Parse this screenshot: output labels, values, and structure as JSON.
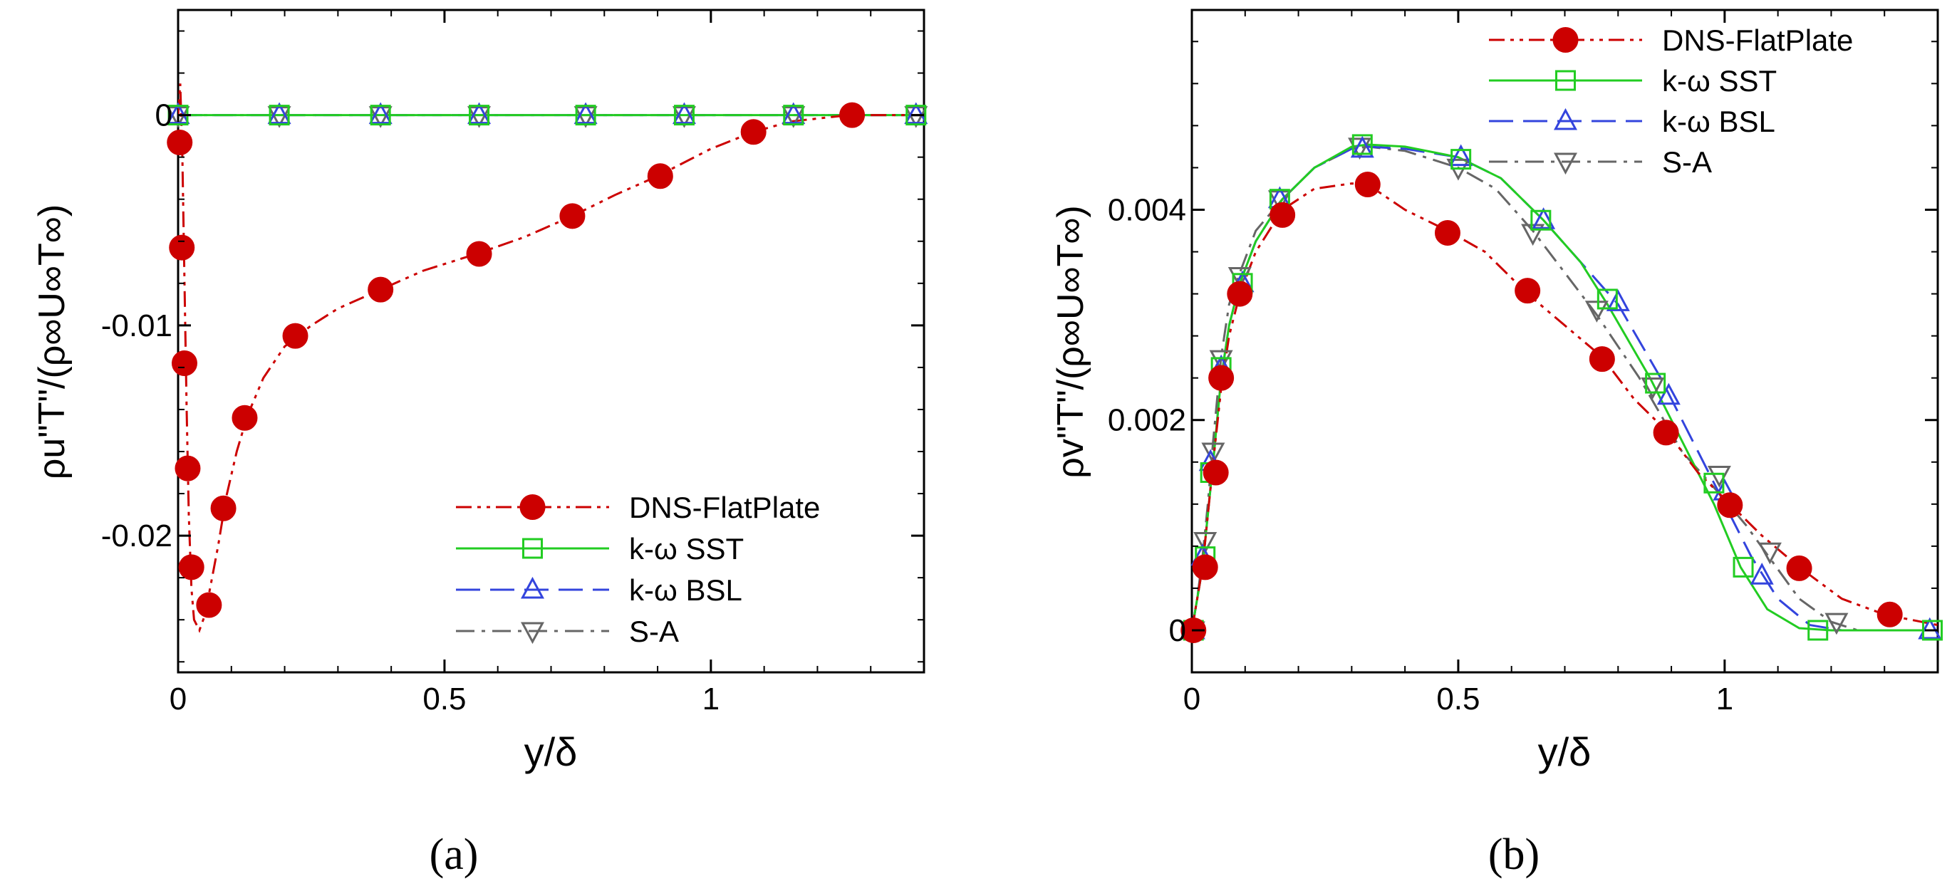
{
  "chart_data": [
    {
      "type": "line",
      "panel_label": "(a)",
      "xlabel": "y/δ",
      "ylabel": "ρu\"T\"/(ρ∞U∞T∞)",
      "xlim": [
        0,
        1.4
      ],
      "ylim": [
        -0.0265,
        0.005
      ],
      "x_ticks": [
        0,
        0.5,
        1
      ],
      "x_tick_labels": [
        "0",
        "0.5",
        "1"
      ],
      "y_ticks": [
        0,
        -0.01,
        -0.02
      ],
      "y_tick_labels": [
        "0",
        "-0.01",
        "-0.02"
      ],
      "legend_position": "bottom-right",
      "series": [
        {
          "name": "DNS-FlatPlate",
          "color": "#cc0000",
          "dash": "dash-dot-dot",
          "marker": "filled-circle",
          "curve": [
            [
              0,
              0
            ],
            [
              0.004,
              0.0015
            ],
            [
              0.008,
              -0.002
            ],
            [
              0.012,
              -0.008
            ],
            [
              0.016,
              -0.014
            ],
            [
              0.02,
              -0.019
            ],
            [
              0.025,
              -0.0225
            ],
            [
              0.03,
              -0.024
            ],
            [
              0.04,
              -0.0245
            ],
            [
              0.05,
              -0.0238
            ],
            [
              0.06,
              -0.0225
            ],
            [
              0.075,
              -0.0205
            ],
            [
              0.09,
              -0.0182
            ],
            [
              0.11,
              -0.016
            ],
            [
              0.13,
              -0.0143
            ],
            [
              0.16,
              -0.0125
            ],
            [
              0.2,
              -0.011
            ],
            [
              0.25,
              -0.01
            ],
            [
              0.3,
              -0.0092
            ],
            [
              0.38,
              -0.0083
            ],
            [
              0.46,
              -0.0074
            ],
            [
              0.56,
              -0.0066
            ],
            [
              0.65,
              -0.0058
            ],
            [
              0.74,
              -0.0048
            ],
            [
              0.82,
              -0.0038
            ],
            [
              0.9,
              -0.0029
            ],
            [
              1.0,
              -0.0016
            ],
            [
              1.08,
              -0.0008
            ],
            [
              1.15,
              -0.0003
            ],
            [
              1.26,
              0
            ],
            [
              1.4,
              0
            ]
          ],
          "points": [
            [
              0.003,
              -0.0013
            ],
            [
              0.007,
              -0.0063
            ],
            [
              0.012,
              -0.0118
            ],
            [
              0.018,
              -0.0168
            ],
            [
              0.025,
              -0.0215
            ],
            [
              0.058,
              -0.0233
            ],
            [
              0.085,
              -0.0187
            ],
            [
              0.125,
              -0.0144
            ],
            [
              0.22,
              -0.0105
            ],
            [
              0.38,
              -0.0083
            ],
            [
              0.565,
              -0.0066
            ],
            [
              0.74,
              -0.0048
            ],
            [
              0.905,
              -0.0029
            ],
            [
              1.08,
              -0.0008
            ],
            [
              1.265,
              0
            ]
          ]
        },
        {
          "name": "k-ω SST",
          "color": "#22cc22",
          "dash": "solid",
          "marker": "open-square",
          "curve": [
            [
              0,
              0
            ],
            [
              1.4,
              0
            ]
          ],
          "points": [
            [
              0,
              0
            ],
            [
              0.19,
              0
            ],
            [
              0.38,
              0
            ],
            [
              0.565,
              0
            ],
            [
              0.765,
              0
            ],
            [
              0.95,
              0
            ],
            [
              1.155,
              0
            ],
            [
              1.385,
              0
            ]
          ]
        },
        {
          "name": "k-ω BSL",
          "color": "#3344dd",
          "dash": "long-dash",
          "marker": "open-triangle-up",
          "curve": [
            [
              0,
              0
            ],
            [
              1.4,
              0
            ]
          ],
          "points": [
            [
              0,
              0
            ],
            [
              0.19,
              0
            ],
            [
              0.38,
              0
            ],
            [
              0.565,
              0
            ],
            [
              0.765,
              0
            ],
            [
              0.95,
              0
            ],
            [
              1.155,
              0
            ],
            [
              1.385,
              0
            ]
          ]
        },
        {
          "name": "S-A",
          "color": "#666666",
          "dash": "dash-dot",
          "marker": "open-triangle-down",
          "curve": [
            [
              0,
              0
            ],
            [
              1.4,
              0
            ]
          ],
          "points": [
            [
              0,
              0
            ],
            [
              0.19,
              0
            ],
            [
              0.38,
              0
            ],
            [
              0.565,
              0
            ],
            [
              0.765,
              0
            ],
            [
              0.95,
              0
            ],
            [
              1.155,
              0
            ],
            [
              1.385,
              0
            ]
          ]
        }
      ]
    },
    {
      "type": "line",
      "panel_label": "(b)",
      "xlabel": "y/δ",
      "ylabel": "ρv\"T\"/(ρ∞U∞T∞)",
      "xlim": [
        0,
        1.4
      ],
      "ylim": [
        -0.0004,
        0.0059
      ],
      "x_ticks": [
        0,
        0.5,
        1
      ],
      "x_tick_labels": [
        "0",
        "0.5",
        "1"
      ],
      "y_ticks": [
        0,
        0.002,
        0.004
      ],
      "y_tick_labels": [
        "0",
        "0.002",
        "0.004"
      ],
      "legend_position": "top-right",
      "series": [
        {
          "name": "DNS-FlatPlate",
          "color": "#cc0000",
          "dash": "dash-dot-dot",
          "marker": "filled-circle",
          "curve": [
            [
              0,
              0
            ],
            [
              0.01,
              0.0003
            ],
            [
              0.02,
              0.0006
            ],
            [
              0.03,
              0.0011
            ],
            [
              0.04,
              0.0016
            ],
            [
              0.055,
              0.0023
            ],
            [
              0.07,
              0.0028
            ],
            [
              0.09,
              0.0032
            ],
            [
              0.12,
              0.0036
            ],
            [
              0.17,
              0.004
            ],
            [
              0.23,
              0.0042
            ],
            [
              0.3,
              0.00425
            ],
            [
              0.33,
              0.00424
            ],
            [
              0.4,
              0.004
            ],
            [
              0.48,
              0.0038
            ],
            [
              0.55,
              0.0036
            ],
            [
              0.63,
              0.0032
            ],
            [
              0.7,
              0.0029
            ],
            [
              0.77,
              0.0026
            ],
            [
              0.83,
              0.0022
            ],
            [
              0.89,
              0.0019
            ],
            [
              0.95,
              0.0015
            ],
            [
              1.01,
              0.0012
            ],
            [
              1.07,
              0.0009
            ],
            [
              1.14,
              0.0006
            ],
            [
              1.22,
              0.0003
            ],
            [
              1.3,
              0.00015
            ],
            [
              1.4,
              5e-05
            ]
          ],
          "points": [
            [
              0.003,
              0
            ],
            [
              0.025,
              0.0006
            ],
            [
              0.045,
              0.0015
            ],
            [
              0.055,
              0.0024
            ],
            [
              0.09,
              0.0032
            ],
            [
              0.17,
              0.00395
            ],
            [
              0.33,
              0.00424
            ],
            [
              0.48,
              0.00378
            ],
            [
              0.63,
              0.00323
            ],
            [
              0.77,
              0.00258
            ],
            [
              0.89,
              0.00188
            ],
            [
              1.01,
              0.00119
            ],
            [
              1.14,
              0.00059
            ],
            [
              1.31,
              0.00015
            ]
          ]
        },
        {
          "name": "k-ω SST",
          "color": "#22cc22",
          "dash": "solid",
          "marker": "open-square",
          "curve": [
            [
              0,
              0
            ],
            [
              0.01,
              0.0003
            ],
            [
              0.02,
              0.0006
            ],
            [
              0.03,
              0.0011
            ],
            [
              0.04,
              0.0016
            ],
            [
              0.055,
              0.0024
            ],
            [
              0.07,
              0.0029
            ],
            [
              0.09,
              0.0033
            ],
            [
              0.12,
              0.0037
            ],
            [
              0.17,
              0.0041
            ],
            [
              0.23,
              0.0044
            ],
            [
              0.3,
              0.0046
            ],
            [
              0.33,
              0.00462
            ],
            [
              0.4,
              0.0046
            ],
            [
              0.5,
              0.0045
            ],
            [
              0.58,
              0.0043
            ],
            [
              0.66,
              0.0039
            ],
            [
              0.73,
              0.0035
            ],
            [
              0.78,
              0.0031
            ],
            [
              0.86,
              0.0024
            ],
            [
              0.93,
              0.0017
            ],
            [
              0.98,
              0.0012
            ],
            [
              1.03,
              0.0006
            ],
            [
              1.08,
              0.0002
            ],
            [
              1.14,
              2e-05
            ],
            [
              1.2,
              0
            ],
            [
              1.4,
              0
            ]
          ],
          "points": [
            [
              0.003,
              0
            ],
            [
              0.025,
              0.0007
            ],
            [
              0.035,
              0.0015
            ],
            [
              0.055,
              0.0025
            ],
            [
              0.095,
              0.0033
            ],
            [
              0.165,
              0.0041
            ],
            [
              0.32,
              0.00462
            ],
            [
              0.505,
              0.00448
            ],
            [
              0.655,
              0.0039
            ],
            [
              0.78,
              0.00315
            ],
            [
              0.87,
              0.00235
            ],
            [
              0.98,
              0.0014
            ],
            [
              1.035,
              0.0006
            ],
            [
              1.175,
              0
            ],
            [
              1.39,
              0
            ]
          ]
        },
        {
          "name": "k-ω BSL",
          "color": "#3344dd",
          "dash": "long-dash",
          "marker": "open-triangle-up",
          "curve": [
            [
              0,
              0
            ],
            [
              0.01,
              0.0003
            ],
            [
              0.02,
              0.0006
            ],
            [
              0.03,
              0.0011
            ],
            [
              0.04,
              0.0016
            ],
            [
              0.055,
              0.0024
            ],
            [
              0.07,
              0.0029
            ],
            [
              0.09,
              0.0033
            ],
            [
              0.12,
              0.0037
            ],
            [
              0.17,
              0.0041
            ],
            [
              0.23,
              0.0044
            ],
            [
              0.3,
              0.00458
            ],
            [
              0.33,
              0.0046
            ],
            [
              0.4,
              0.00458
            ],
            [
              0.5,
              0.0045
            ],
            [
              0.58,
              0.0043
            ],
            [
              0.66,
              0.0039
            ],
            [
              0.73,
              0.0035
            ],
            [
              0.8,
              0.0031
            ],
            [
              0.88,
              0.0024
            ],
            [
              0.95,
              0.0017
            ],
            [
              1.0,
              0.0012
            ],
            [
              1.05,
              0.0007
            ],
            [
              1.1,
              0.0003
            ],
            [
              1.16,
              5e-05
            ],
            [
              1.22,
              0
            ],
            [
              1.4,
              0
            ]
          ],
          "points": [
            [
              0.003,
              0
            ],
            [
              0.02,
              0.0007
            ],
            [
              0.035,
              0.0016
            ],
            [
              0.055,
              0.0025
            ],
            [
              0.095,
              0.0033
            ],
            [
              0.165,
              0.0041
            ],
            [
              0.32,
              0.00458
            ],
            [
              0.505,
              0.0045
            ],
            [
              0.66,
              0.0039
            ],
            [
              0.8,
              0.00312
            ],
            [
              0.895,
              0.00223
            ],
            [
              1.0,
              0.00132
            ],
            [
              1.07,
              0.00052
            ],
            [
              1.385,
              0
            ]
          ]
        },
        {
          "name": "S-A",
          "color": "#666666",
          "dash": "dash-dot",
          "marker": "open-triangle-down",
          "curve": [
            [
              0,
              0
            ],
            [
              0.01,
              0.0003
            ],
            [
              0.02,
              0.0007
            ],
            [
              0.03,
              0.0012
            ],
            [
              0.04,
              0.0018
            ],
            [
              0.055,
              0.0026
            ],
            [
              0.07,
              0.0031
            ],
            [
              0.09,
              0.0034
            ],
            [
              0.12,
              0.0038
            ],
            [
              0.17,
              0.0041
            ],
            [
              0.23,
              0.0044
            ],
            [
              0.3,
              0.00458
            ],
            [
              0.33,
              0.0046
            ],
            [
              0.4,
              0.00456
            ],
            [
              0.5,
              0.0044
            ],
            [
              0.57,
              0.0042
            ],
            [
              0.64,
              0.0038
            ],
            [
              0.7,
              0.0034
            ],
            [
              0.76,
              0.003
            ],
            [
              0.84,
              0.0024
            ],
            [
              0.92,
              0.0017
            ],
            [
              0.99,
              0.0013
            ],
            [
              1.04,
              0.001
            ],
            [
              1.08,
              0.00072
            ],
            [
              1.14,
              0.0003
            ],
            [
              1.2,
              8e-05
            ],
            [
              1.25,
              0
            ],
            [
              1.4,
              0
            ]
          ],
          "points": [
            [
              0.003,
              0
            ],
            [
              0.025,
              0.00085
            ],
            [
              0.04,
              0.0017
            ],
            [
              0.055,
              0.00258
            ],
            [
              0.09,
              0.00337
            ],
            [
              0.165,
              0.0041
            ],
            [
              0.315,
              0.0046
            ],
            [
              0.5,
              0.0044
            ],
            [
              0.64,
              0.00378
            ],
            [
              0.76,
              0.00305
            ],
            [
              0.865,
              0.00232
            ],
            [
              0.99,
              0.00148
            ],
            [
              1.085,
              0.00075
            ],
            [
              1.21,
              8e-05
            ]
          ]
        }
      ]
    }
  ]
}
